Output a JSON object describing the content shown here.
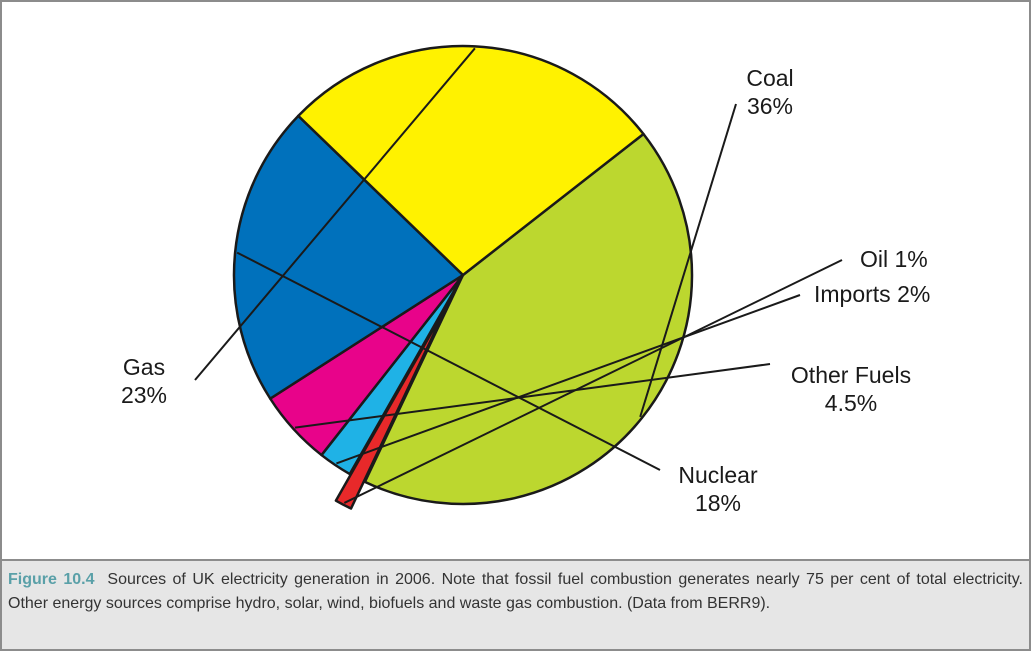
{
  "chart_data": {
    "type": "pie",
    "slices": [
      {
        "label": "Coal",
        "value_label": "36%",
        "value": 36,
        "color": "#bcd72f"
      },
      {
        "label": "Oil",
        "value_label": "1%",
        "value": 1,
        "color": "#e8292a"
      },
      {
        "label": "Imports",
        "value_label": "2%",
        "value": 2,
        "color": "#1fb2e6"
      },
      {
        "label": "Other Fuels",
        "value_label": "4.5%",
        "value": 4.5,
        "color": "#e8038a"
      },
      {
        "label": "Nuclear",
        "value_label": "18%",
        "value": 18,
        "color": "#0071bc"
      },
      {
        "label": "Gas",
        "value_label": "23%",
        "value": 23,
        "color": "#fff200"
      }
    ]
  },
  "caption": {
    "label": "Figure 10.4",
    "text": "Sources of UK electricity generation in 2006. Note that fossil fuel combustion generates nearly 75 per cent of total electricity. Other energy sources comprise hydro, solar, wind, biofuels and waste gas combustion. (Data from BERR9)."
  }
}
